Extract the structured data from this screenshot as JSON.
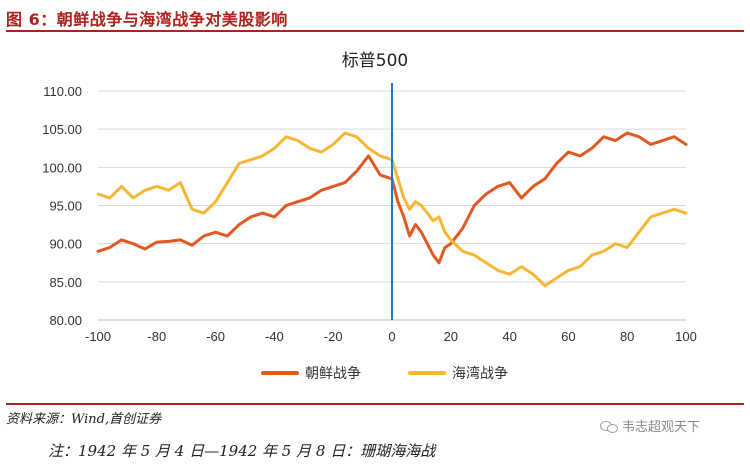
{
  "figure": {
    "title": "图 6：朝鲜战争与海湾战争对美股影响",
    "source": "资料来源：Wind,首创证券",
    "note": "注：1942 年 5 月 4 日—1942 年 5 月 8 日：珊瑚海海战",
    "watermark": "韦志超观天下"
  },
  "colors": {
    "brand": "#b0201f",
    "korea": "#e25822",
    "gulf": "#f7b733",
    "event_line": "#1f78c8"
  },
  "chart_data": {
    "type": "line",
    "title": "标普500",
    "xlim": [
      -100,
      100
    ],
    "ylim": [
      80,
      110
    ],
    "xticks": [
      -100,
      -80,
      -60,
      -40,
      -20,
      0,
      20,
      40,
      60,
      80,
      100
    ],
    "yticks": [
      80,
      85,
      90,
      95,
      100,
      105,
      110
    ],
    "ytick_labels": [
      "80.00",
      "85.00",
      "90.00",
      "95.00",
      "100.00",
      "105.00",
      "110.00"
    ],
    "event_x": 0,
    "legend_position": "bottom",
    "grid": true,
    "x": [
      -100,
      -96,
      -92,
      -88,
      -84,
      -80,
      -76,
      -72,
      -68,
      -64,
      -60,
      -56,
      -52,
      -48,
      -44,
      -40,
      -36,
      -32,
      -28,
      -24,
      -20,
      -16,
      -12,
      -8,
      -4,
      0,
      2,
      4,
      6,
      8,
      10,
      12,
      14,
      16,
      18,
      20,
      24,
      28,
      32,
      36,
      40,
      44,
      48,
      52,
      56,
      60,
      64,
      68,
      72,
      76,
      80,
      84,
      88,
      92,
      96,
      100
    ],
    "series": [
      {
        "name": "朝鲜战争",
        "color": "#e25822",
        "values": [
          89.0,
          89.5,
          90.5,
          90.0,
          89.3,
          90.2,
          90.3,
          90.5,
          89.8,
          91.0,
          91.5,
          91.0,
          92.5,
          93.5,
          94.0,
          93.5,
          95.0,
          95.5,
          96.0,
          97.0,
          97.5,
          98.0,
          99.5,
          101.5,
          99.0,
          98.5,
          95.5,
          93.5,
          91.0,
          92.5,
          91.5,
          90.0,
          88.5,
          87.5,
          89.5,
          90.0,
          92.0,
          95.0,
          96.5,
          97.5,
          98.0,
          96.0,
          97.5,
          98.5,
          100.5,
          102.0,
          101.5,
          102.5,
          104.0,
          103.5,
          104.5,
          104.0,
          103.0,
          103.5,
          104.0,
          103.0
        ]
      },
      {
        "name": "海湾战争",
        "color": "#f7b733",
        "values": [
          96.5,
          96.0,
          97.5,
          96.0,
          97.0,
          97.5,
          97.0,
          98.0,
          94.5,
          94.0,
          95.5,
          98.0,
          100.5,
          101.0,
          101.5,
          102.5,
          104.0,
          103.5,
          102.5,
          102.0,
          103.0,
          104.5,
          104.0,
          102.5,
          101.5,
          101.0,
          98.5,
          96.0,
          94.5,
          95.5,
          95.0,
          94.0,
          93.0,
          93.5,
          91.5,
          90.5,
          89.0,
          88.5,
          87.5,
          86.5,
          86.0,
          87.0,
          86.0,
          84.5,
          85.5,
          86.5,
          87.0,
          88.5,
          89.0,
          90.0,
          89.5,
          91.5,
          93.5,
          94.0,
          94.5,
          94.0
        ]
      }
    ]
  }
}
